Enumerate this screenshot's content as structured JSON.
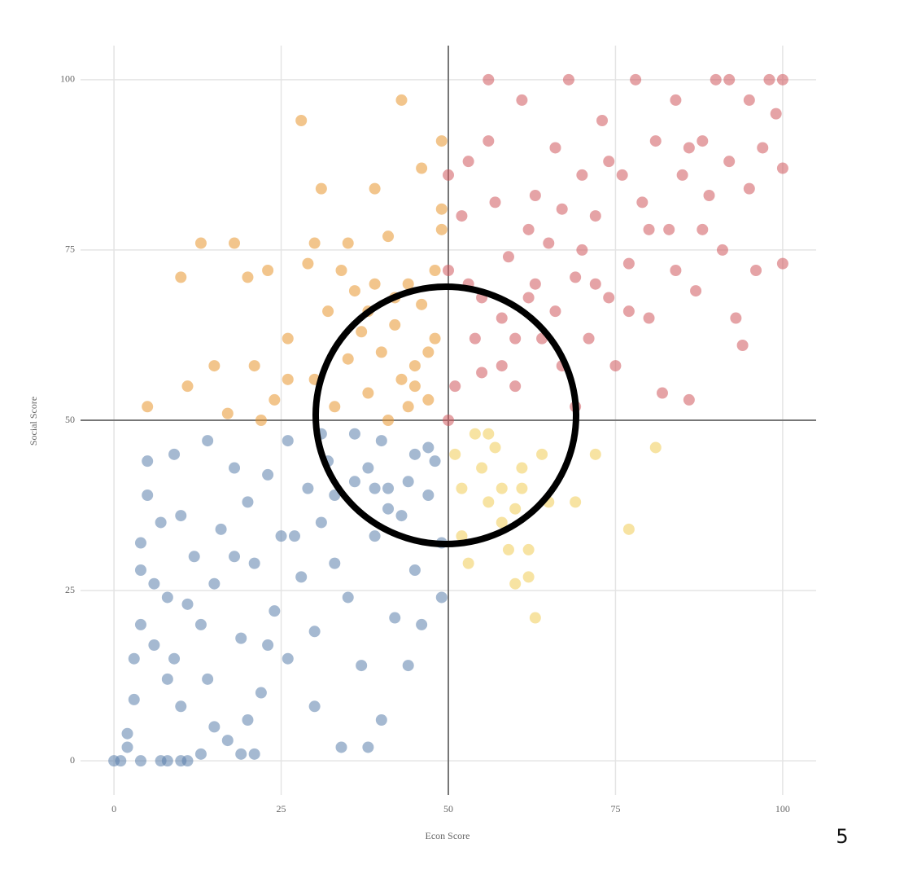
{
  "chart_data": {
    "type": "scatter",
    "x_label": "Econ Score",
    "y_label": "Social Score",
    "xlim": [
      -5,
      105
    ],
    "ylim": [
      -5,
      105
    ],
    "xticks": [
      0,
      25,
      50,
      75,
      100
    ],
    "yticks": [
      0,
      25,
      50,
      75,
      100
    ],
    "grid": true,
    "reference_lines": {
      "x": 50,
      "y": 50
    },
    "series": [
      {
        "color": "#5b7fab",
        "x": [
          0,
          1,
          4,
          7,
          8,
          10,
          11,
          2,
          3,
          4,
          4,
          4,
          5,
          5,
          6,
          7,
          8,
          9,
          9,
          10,
          10,
          12,
          13,
          14,
          14,
          15,
          16,
          17,
          18,
          19,
          20,
          20,
          21,
          22,
          23,
          24,
          25,
          26,
          26,
          28,
          29,
          30,
          30,
          31,
          32,
          33,
          34,
          35,
          36,
          37,
          38,
          38,
          39,
          40,
          40,
          41,
          42,
          43,
          44,
          45,
          45,
          46,
          47,
          48,
          49,
          49,
          11,
          3,
          2,
          8,
          13,
          19,
          21,
          27,
          33,
          36,
          39,
          41,
          44,
          47,
          31,
          18,
          23,
          6,
          15
        ],
        "y": [
          0,
          0,
          0,
          0,
          0,
          0,
          0,
          4,
          9,
          20,
          28,
          32,
          44,
          39,
          17,
          35,
          24,
          45,
          15,
          36,
          8,
          30,
          20,
          47,
          12,
          26,
          34,
          3,
          43,
          18,
          38,
          6,
          29,
          10,
          42,
          22,
          33,
          47,
          15,
          27,
          40,
          8,
          19,
          35,
          44,
          29,
          2,
          24,
          48,
          14,
          43,
          2,
          33,
          47,
          6,
          40,
          21,
          36,
          14,
          45,
          28,
          20,
          39,
          44,
          24,
          32,
          23,
          15,
          2,
          12,
          1,
          1,
          1,
          33,
          39,
          41,
          40,
          37,
          41,
          46,
          48,
          30,
          17,
          26,
          5
        ]
      },
      {
        "color": "#e8962e",
        "x": [
          5,
          10,
          11,
          13,
          15,
          17,
          18,
          20,
          21,
          22,
          23,
          24,
          26,
          26,
          28,
          29,
          30,
          30,
          31,
          32,
          33,
          34,
          35,
          35,
          36,
          37,
          38,
          39,
          39,
          40,
          41,
          42,
          43,
          43,
          44,
          45,
          46,
          46,
          47,
          48,
          48,
          49,
          49,
          49,
          47,
          44,
          41,
          38,
          42,
          45
        ],
        "y": [
          52,
          71,
          55,
          76,
          58,
          51,
          76,
          71,
          58,
          50,
          72,
          53,
          56,
          62,
          94,
          73,
          76,
          56,
          84,
          66,
          52,
          72,
          59,
          76,
          69,
          63,
          54,
          84,
          70,
          60,
          77,
          64,
          97,
          56,
          70,
          58,
          87,
          67,
          53,
          72,
          62,
          78,
          91,
          81,
          60,
          52,
          50,
          66,
          68,
          55
        ]
      },
      {
        "color": "#d0575d",
        "x": [
          50,
          50,
          51,
          52,
          53,
          54,
          55,
          56,
          56,
          57,
          58,
          59,
          60,
          61,
          62,
          63,
          64,
          65,
          66,
          67,
          68,
          69,
          70,
          71,
          72,
          73,
          74,
          75,
          76,
          77,
          78,
          79,
          80,
          81,
          82,
          83,
          84,
          85,
          86,
          87,
          88,
          89,
          90,
          91,
          92,
          93,
          94,
          95,
          96,
          97,
          98,
          99,
          100,
          100,
          100,
          60,
          63,
          66,
          70,
          74,
          80,
          84,
          88,
          92,
          58,
          53,
          55,
          62,
          67,
          72,
          77,
          86,
          95,
          69,
          50
        ],
        "y": [
          86,
          72,
          55,
          80,
          88,
          62,
          68,
          91,
          100,
          82,
          58,
          74,
          55,
          97,
          68,
          83,
          62,
          76,
          90,
          58,
          100,
          71,
          86,
          62,
          80,
          94,
          68,
          58,
          86,
          73,
          100,
          82,
          65,
          91,
          54,
          78,
          97,
          86,
          53,
          69,
          91,
          83,
          100,
          75,
          88,
          65,
          61,
          97,
          72,
          90,
          100,
          95,
          100,
          87,
          73,
          62,
          70,
          66,
          75,
          88,
          78,
          72,
          78,
          100,
          65,
          70,
          57,
          78,
          81,
          70,
          66,
          90,
          84,
          52,
          50
        ]
      },
      {
        "color": "#f0cc55",
        "x": [
          51,
          52,
          52,
          53,
          54,
          55,
          56,
          57,
          58,
          59,
          60,
          60,
          61,
          62,
          62,
          63,
          64,
          65,
          69,
          72,
          77,
          81,
          56,
          58,
          61
        ],
        "y": [
          45,
          40,
          33,
          29,
          48,
          43,
          38,
          46,
          40,
          31,
          37,
          26,
          43,
          31,
          27,
          21,
          45,
          38,
          38,
          45,
          34,
          46,
          48,
          35,
          40
        ]
      }
    ]
  },
  "page_number": "5"
}
